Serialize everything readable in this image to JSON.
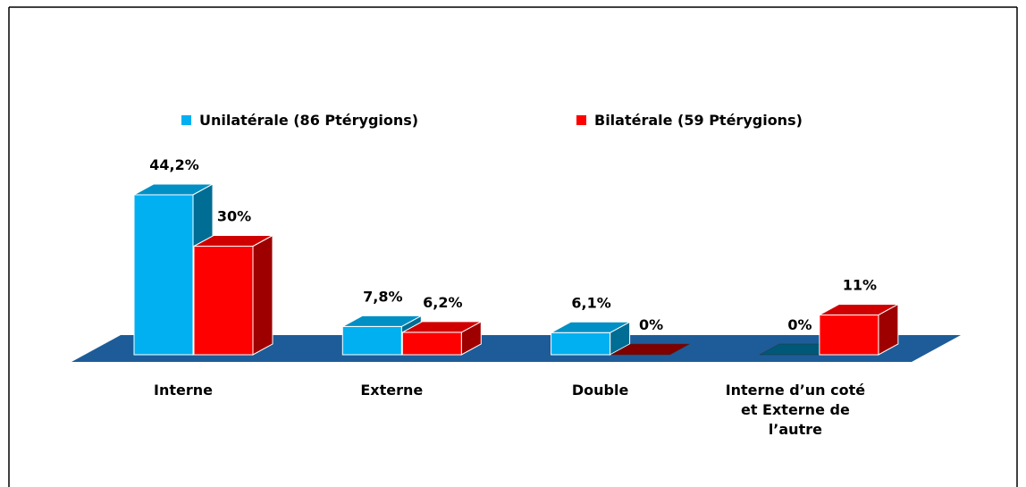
{
  "chart_data": {
    "type": "bar3d",
    "categories": [
      "Interne",
      "Externe",
      "Double",
      "Interne d’un coté et Externe de l’autre"
    ],
    "series": [
      {
        "name": "Unilatérale (86 Ptérygions)",
        "color": "#00b0f0",
        "values": [
          44.2,
          7.8,
          6.1,
          0
        ],
        "value_labels": [
          "44,2%",
          "7,8%",
          "6,1%",
          "0%"
        ]
      },
      {
        "name": "Bilatérale (59 Ptérygions)",
        "color": "#ff0000",
        "values": [
          30,
          6.2,
          0,
          11
        ],
        "value_labels": [
          "30%",
          "6,2%",
          "0%",
          "11%"
        ]
      }
    ],
    "floor_color": "#1d5c98"
  }
}
